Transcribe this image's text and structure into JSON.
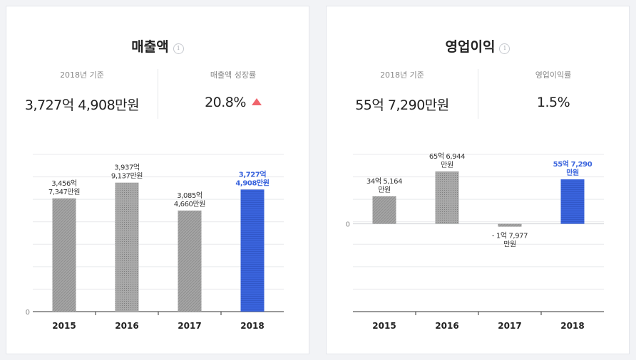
{
  "revenue": {
    "title": "매출액",
    "info_icon": "i",
    "basis_label": "2018년 기준",
    "value": "3,727억 4,908만원",
    "growth_label": "매출액 성장률",
    "growth_value": "20.8%",
    "growth_arrow": "triangle-up-icon",
    "up_color": "#f0646c"
  },
  "operating_profit": {
    "title": "영업이익",
    "info_icon": "i",
    "basis_label": "2018년 기준",
    "value": "55억 7,290만원",
    "margin_label": "영업이익률",
    "margin_value": "1.5%"
  },
  "colors": {
    "bar_past": "#a5a5a5",
    "bar_highlight": "#3a64dd",
    "highlight_text": "#3a64dd"
  },
  "chart_data": [
    {
      "type": "bar",
      "title": "매출액",
      "categories": [
        "2015",
        "2016",
        "2017",
        "2018"
      ],
      "values": [
        345673470000,
        393791370000,
        308546600000,
        372749080000
      ],
      "labels": [
        [
          "3,456억",
          "7,347만원"
        ],
        [
          "3,937억",
          "9,137만원"
        ],
        [
          "3,085억",
          "4,660만원"
        ],
        [
          "3,727억",
          "4,908만원"
        ]
      ],
      "highlight_index": 3,
      "y_tick_labels": [
        "0"
      ],
      "ylim": [
        0,
        480000000000
      ],
      "grid": true
    },
    {
      "type": "bar",
      "title": "영업이익",
      "categories": [
        "2015",
        "2016",
        "2017",
        "2018"
      ],
      "values": [
        3451640000,
        6569440000,
        -179770000,
        5572900000
      ],
      "labels": [
        [
          "34억 5,164",
          "만원"
        ],
        [
          "65억 6,944",
          "만원"
        ],
        [
          "- 1억 7,977",
          "만원"
        ],
        [
          "55억 7,290",
          "만원"
        ]
      ],
      "highlight_index": 3,
      "y_tick_labels": [
        "0"
      ],
      "ylim": [
        -11000000000,
        8700000000
      ],
      "grid": true
    }
  ]
}
